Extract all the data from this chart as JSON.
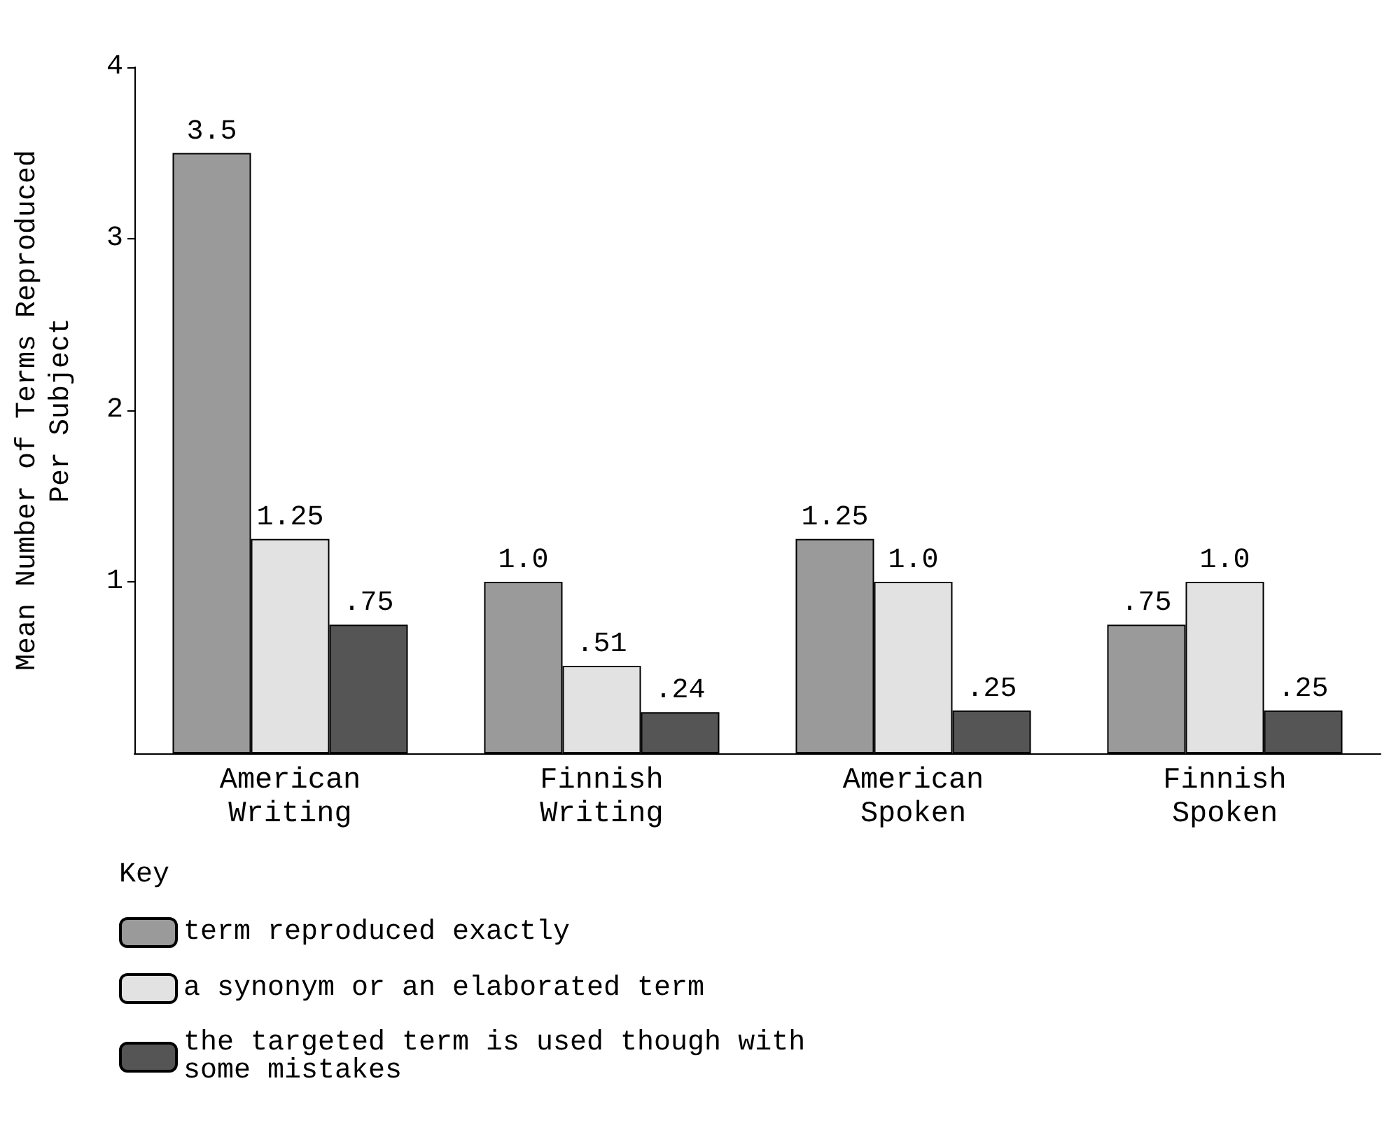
{
  "chart_data": {
    "type": "bar",
    "categories": [
      "American\nWriting",
      "Finnish\nWriting",
      "American\nSpoken",
      "Finnish\nSpoken"
    ],
    "ylabel": "Mean Number of Terms Reproduced\nPer Subject",
    "ylim": [
      0,
      4
    ],
    "yticks": [
      1,
      2,
      3,
      4
    ],
    "legend": "bottom left",
    "legend_title": "Key",
    "grid": false,
    "series": [
      {
        "name": "term reproduced exactly",
        "color": "#9a9a9a",
        "values": [
          3.5,
          1.0,
          1.25,
          0.75
        ],
        "value_labels": [
          "3.5",
          "1.0",
          "1.25",
          ".75"
        ]
      },
      {
        "name": "a synonym or an elaborated term",
        "color": "#e2e2e2",
        "values": [
          1.25,
          0.51,
          1.0,
          1.0
        ],
        "value_labels": [
          "1.25",
          ".51",
          "1.0",
          "1.0"
        ]
      },
      {
        "name": "the targeted term is used though with some mistakes",
        "color": "#555555",
        "values": [
          0.75,
          0.24,
          0.25,
          0.25
        ],
        "value_labels": [
          ".75",
          ".24",
          ".25",
          ".25"
        ]
      }
    ]
  }
}
